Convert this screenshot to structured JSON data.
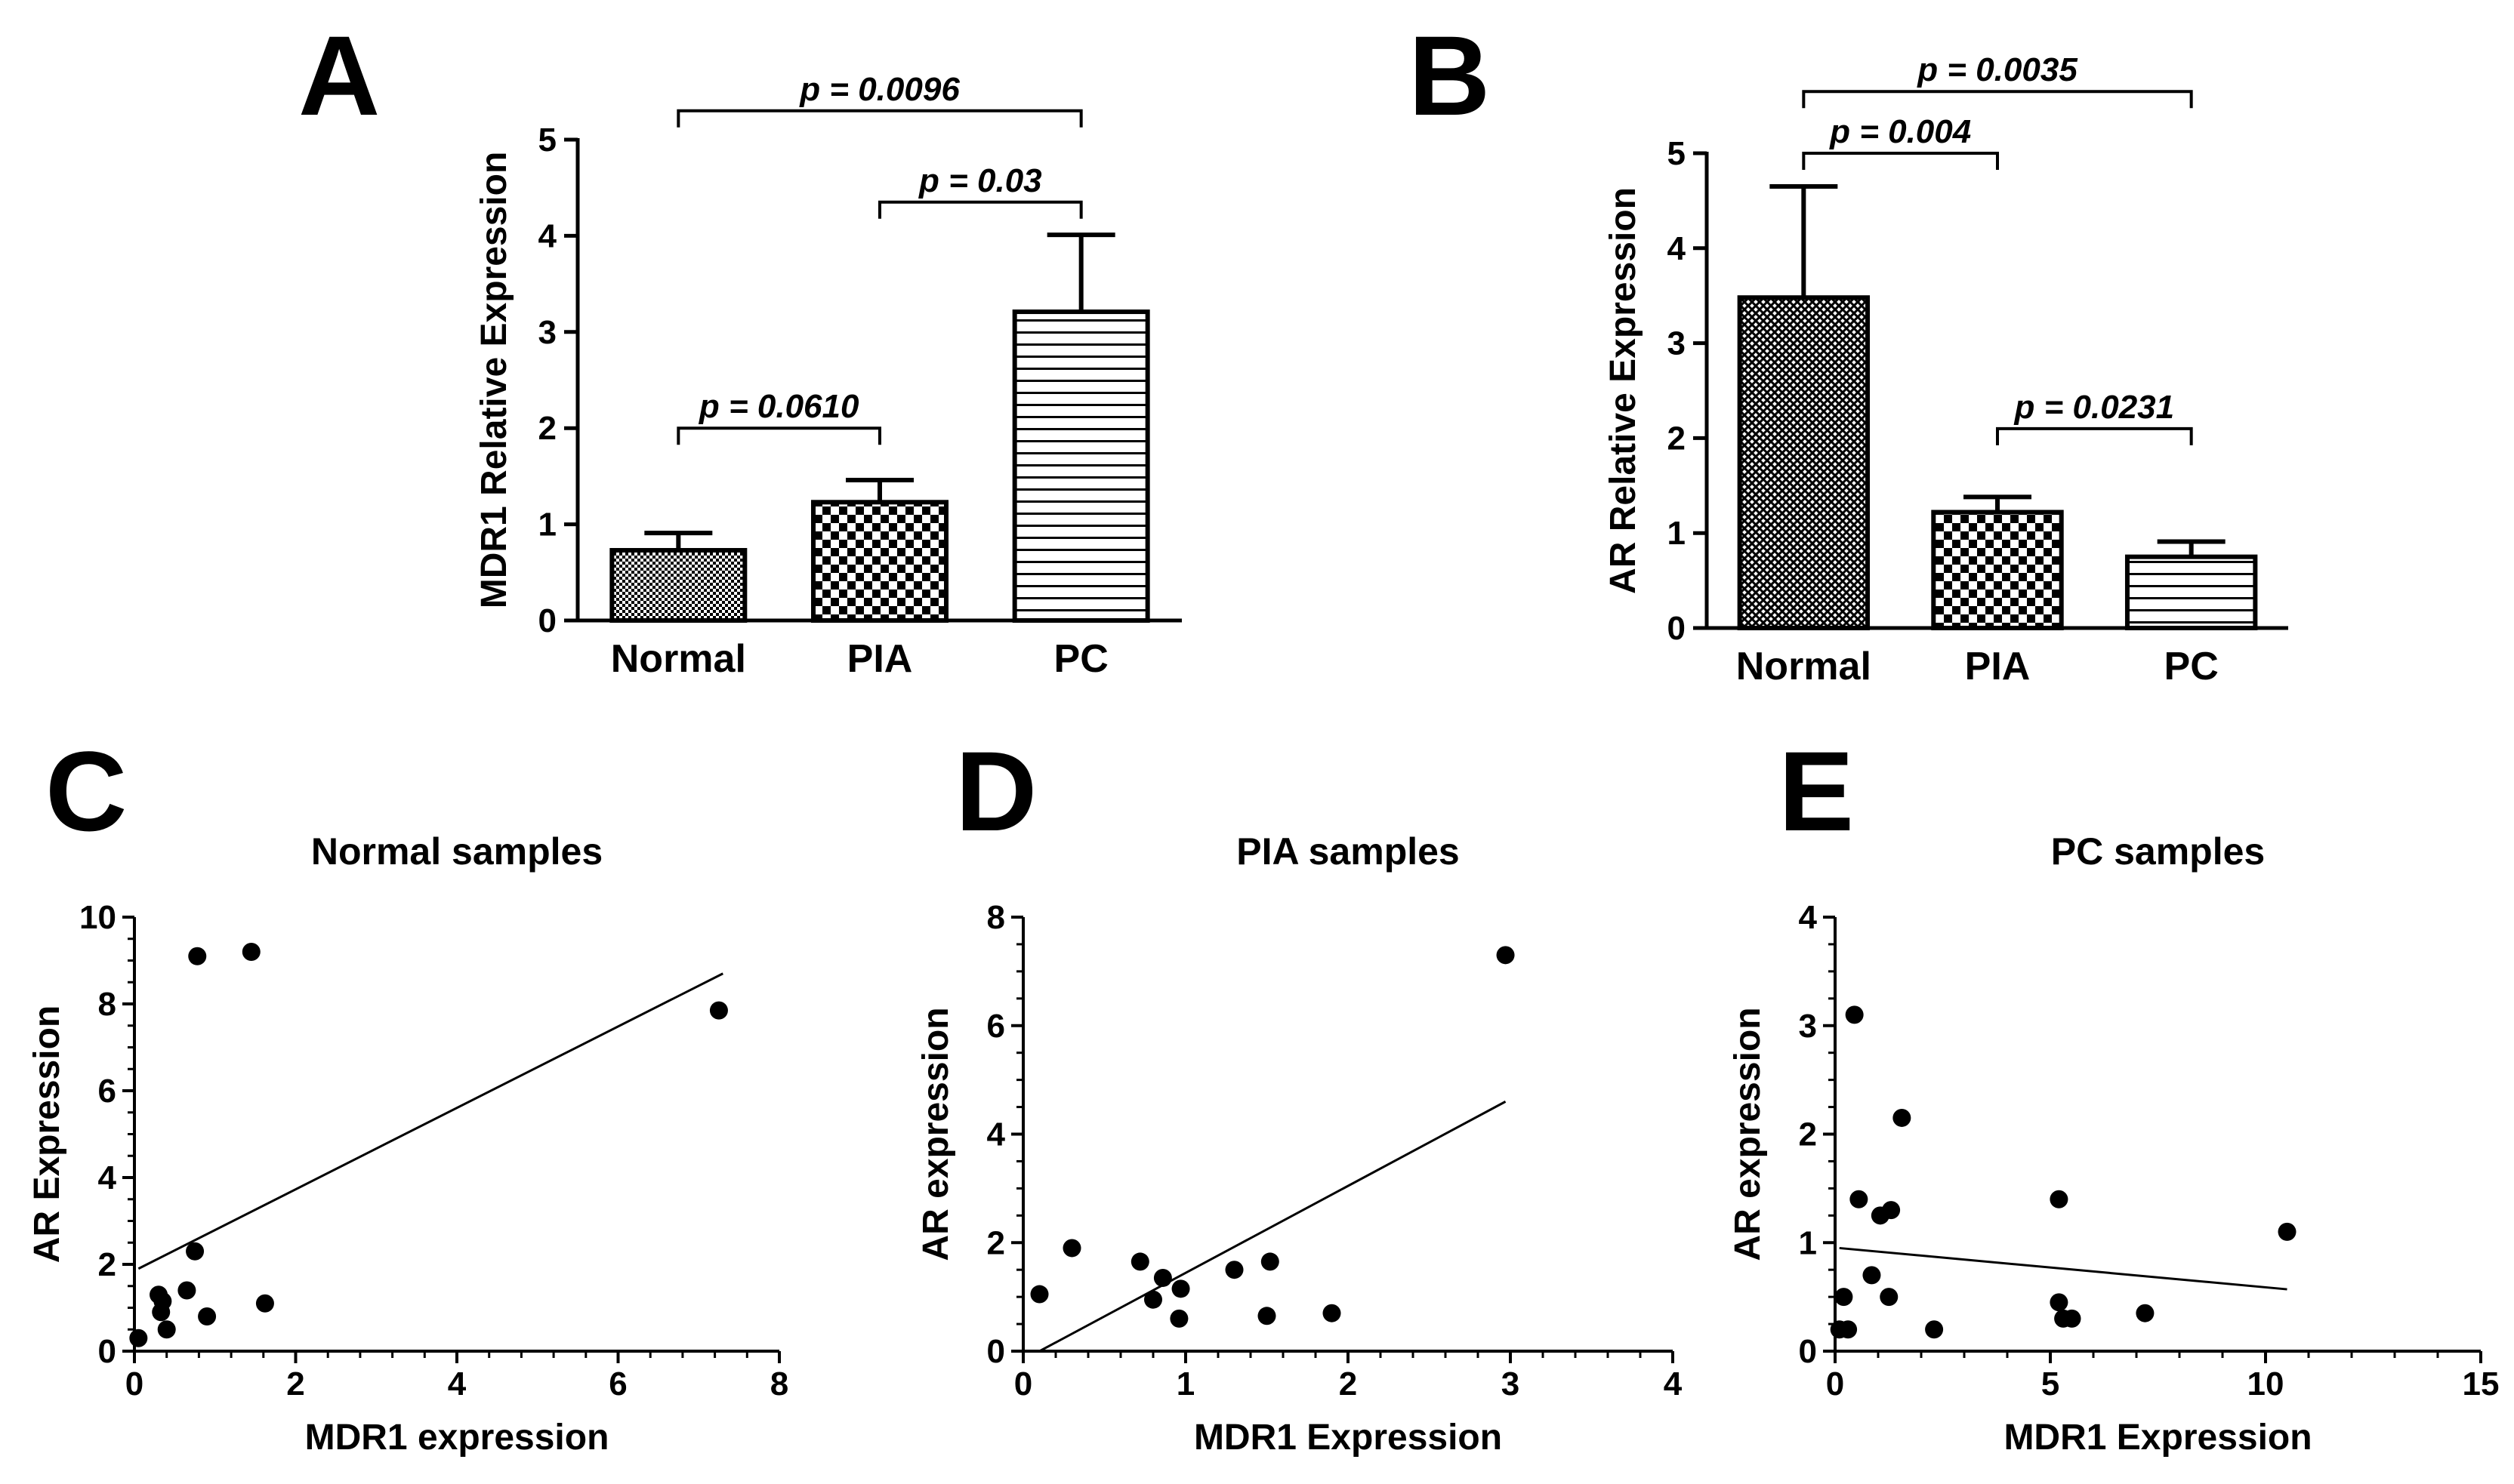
{
  "chart_data": [
    {
      "panel": "A",
      "type": "bar",
      "ylabel": "MDR1 Relative Expression",
      "xlabel": "",
      "ylim": [
        0,
        5
      ],
      "yticks": [
        0,
        1,
        2,
        3,
        4,
        5
      ],
      "categories": [
        "Normal",
        "PIA",
        "PC"
      ],
      "values": [
        0.73,
        1.23,
        3.21
      ],
      "errors": [
        0.18,
        0.23,
        0.8
      ],
      "patterns": [
        "fine-dots",
        "checker",
        "horizontal-lines"
      ],
      "comparisons": [
        {
          "from": 0,
          "to": 1,
          "label": "p = 0.0610",
          "y": 2.0
        },
        {
          "from": 1,
          "to": 2,
          "label": "p = 0.03",
          "y": 4.35
        },
        {
          "from": 0,
          "to": 2,
          "label": "p = 0.0096",
          "y": 5.3
        }
      ]
    },
    {
      "panel": "B",
      "type": "bar",
      "ylabel": "AR Relative Expression",
      "xlabel": "",
      "ylim": [
        0,
        5
      ],
      "yticks": [
        0,
        1,
        2,
        3,
        4,
        5
      ],
      "categories": [
        "Normal",
        "PIA",
        "PC"
      ],
      "values": [
        3.48,
        1.22,
        0.75
      ],
      "errors": [
        1.17,
        0.16,
        0.16
      ],
      "patterns": [
        "crosshatch",
        "checker",
        "horizontal-lines"
      ],
      "comparisons": [
        {
          "from": 1,
          "to": 2,
          "label": "p = 0.0231",
          "y": 2.1
        },
        {
          "from": 0,
          "to": 1,
          "label": "p = 0.004",
          "y": 5.0
        },
        {
          "from": 0,
          "to": 2,
          "label": "p = 0.0035",
          "y": 5.65
        }
      ]
    },
    {
      "panel": "C",
      "type": "scatter",
      "title": "Normal samples",
      "xlabel": "MDR1 expression",
      "ylabel": "AR Expression",
      "xlim": [
        0,
        8
      ],
      "ylim": [
        0,
        10
      ],
      "xticks": [
        0,
        2,
        4,
        6,
        8
      ],
      "yticks": [
        0,
        2,
        4,
        6,
        8,
        10
      ],
      "x_minor": 5,
      "y_minor": 4,
      "points": [
        [
          0.05,
          0.3
        ],
        [
          0.3,
          1.3
        ],
        [
          0.35,
          1.15
        ],
        [
          0.33,
          0.9
        ],
        [
          0.4,
          0.5
        ],
        [
          0.65,
          1.4
        ],
        [
          0.75,
          2.3
        ],
        [
          0.78,
          9.1
        ],
        [
          0.9,
          0.8
        ],
        [
          1.45,
          9.2
        ],
        [
          1.62,
          1.1
        ],
        [
          7.25,
          7.85
        ]
      ],
      "fit": [
        [
          0.05,
          1.9
        ],
        [
          7.3,
          8.7
        ]
      ]
    },
    {
      "panel": "D",
      "type": "scatter",
      "title": "PIA samples",
      "xlabel": "MDR1 Expression",
      "ylabel": "AR expression",
      "xlim": [
        0,
        4
      ],
      "ylim": [
        0,
        8
      ],
      "xticks": [
        0,
        1,
        2,
        3,
        4
      ],
      "yticks": [
        0,
        2,
        4,
        6,
        8
      ],
      "x_minor": 5,
      "y_minor": 4,
      "points": [
        [
          0.1,
          1.05
        ],
        [
          0.3,
          1.9
        ],
        [
          0.72,
          1.65
        ],
        [
          0.8,
          0.95
        ],
        [
          0.86,
          1.35
        ],
        [
          0.96,
          0.6
        ],
        [
          0.97,
          1.15
        ],
        [
          1.3,
          1.5
        ],
        [
          1.5,
          0.65
        ],
        [
          1.52,
          1.65
        ],
        [
          1.9,
          0.7
        ],
        [
          2.97,
          7.3
        ]
      ],
      "fit": [
        [
          0.1,
          0.0
        ],
        [
          2.97,
          4.6
        ]
      ]
    },
    {
      "panel": "E",
      "type": "scatter",
      "title": "PC samples",
      "xlabel": "MDR1 Expression",
      "ylabel": "AR expression",
      "xlim": [
        0,
        15
      ],
      "ylim": [
        0,
        4
      ],
      "xticks": [
        0,
        5,
        10,
        15
      ],
      "yticks": [
        0,
        1,
        2,
        3,
        4
      ],
      "x_minor": 5,
      "y_minor": 4,
      "points": [
        [
          0.1,
          0.2
        ],
        [
          0.2,
          0.5
        ],
        [
          0.3,
          0.2
        ],
        [
          0.45,
          3.1
        ],
        [
          0.55,
          1.4
        ],
        [
          0.85,
          0.7
        ],
        [
          1.05,
          1.25
        ],
        [
          1.25,
          0.5
        ],
        [
          1.3,
          1.3
        ],
        [
          1.55,
          2.15
        ],
        [
          2.3,
          0.2
        ],
        [
          5.2,
          1.4
        ],
        [
          5.2,
          0.45
        ],
        [
          5.3,
          0.3
        ],
        [
          5.5,
          0.3
        ],
        [
          7.2,
          0.35
        ],
        [
          10.5,
          1.1
        ]
      ],
      "fit": [
        [
          0.1,
          0.95
        ],
        [
          10.5,
          0.57
        ]
      ]
    }
  ]
}
